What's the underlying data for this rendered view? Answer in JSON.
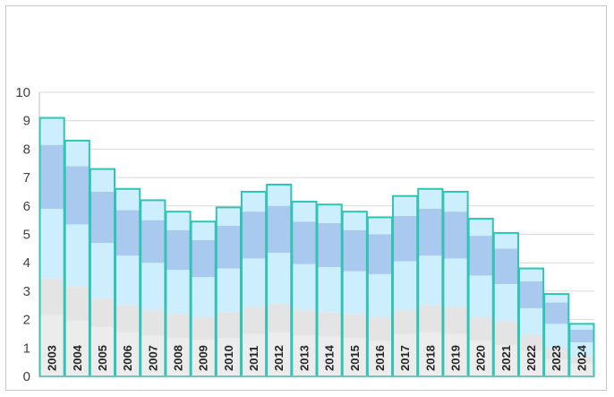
{
  "chart_data": {
    "type": "bar",
    "stacked": true,
    "title": "",
    "xlabel": "",
    "ylabel": "",
    "ylim": [
      0,
      10
    ],
    "yticks": [
      0,
      1,
      2,
      3,
      4,
      5,
      6,
      7,
      8,
      9,
      10
    ],
    "grid": true,
    "legend": "none",
    "categories": [
      "2003",
      "2004",
      "2005",
      "2006",
      "2007",
      "2008",
      "2009",
      "2010",
      "2011",
      "2012",
      "2013",
      "2014",
      "2015",
      "2016",
      "2017",
      "2018",
      "2019",
      "2020",
      "2021",
      "2022",
      "2023",
      "2024"
    ],
    "series": [
      {
        "color": "#ececec",
        "values": [
          2.15,
          1.95,
          1.75,
          1.55,
          1.45,
          1.35,
          1.3,
          1.35,
          1.5,
          1.55,
          1.45,
          1.4,
          1.35,
          1.25,
          1.5,
          1.55,
          1.5,
          1.25,
          1.1,
          0.9,
          0.6,
          0.45
        ]
      },
      {
        "color": "#e4e4e4",
        "values": [
          1.3,
          1.2,
          1.0,
          0.95,
          0.9,
          0.85,
          0.8,
          0.9,
          0.95,
          1.0,
          0.9,
          0.85,
          0.85,
          0.85,
          0.85,
          0.95,
          0.95,
          0.85,
          0.85,
          0.55,
          0.4,
          0.25
        ]
      },
      {
        "color": "#cdeefc",
        "values": [
          2.45,
          2.2,
          1.95,
          1.75,
          1.65,
          1.55,
          1.4,
          1.55,
          1.7,
          1.8,
          1.6,
          1.6,
          1.5,
          1.5,
          1.7,
          1.75,
          1.7,
          1.45,
          1.3,
          0.95,
          0.85,
          0.5
        ]
      },
      {
        "color": "#a9c9ef",
        "values": [
          2.25,
          2.05,
          1.8,
          1.6,
          1.5,
          1.4,
          1.3,
          1.5,
          1.65,
          1.65,
          1.5,
          1.55,
          1.45,
          1.4,
          1.6,
          1.65,
          1.65,
          1.4,
          1.25,
          0.95,
          0.75,
          0.45
        ]
      },
      {
        "color": "#cdeefc",
        "values": [
          0.95,
          0.9,
          0.8,
          0.75,
          0.7,
          0.65,
          0.65,
          0.65,
          0.7,
          0.75,
          0.7,
          0.65,
          0.65,
          0.6,
          0.7,
          0.7,
          0.7,
          0.6,
          0.55,
          0.45,
          0.3,
          0.2
        ]
      }
    ],
    "totals": [
      9.1,
      8.3,
      7.3,
      6.6,
      6.2,
      5.8,
      5.45,
      5.95,
      6.5,
      6.75,
      6.15,
      6.05,
      5.8,
      5.6,
      6.35,
      6.6,
      6.5,
      5.55,
      5.05,
      3.8,
      2.9,
      1.85
    ],
    "outline_color": "#2ec4b6"
  }
}
